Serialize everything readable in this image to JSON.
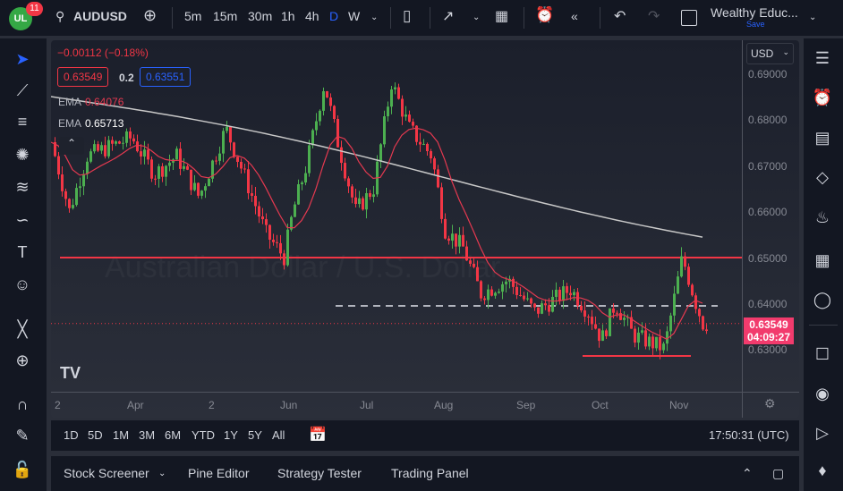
{
  "header": {
    "notification_count": "11",
    "symbol": "AUDUSD",
    "intervals": [
      "5m",
      "15m",
      "30m",
      "1h",
      "4h",
      "D",
      "W"
    ],
    "active_interval": "D",
    "layout_name": "Wealthy Educ...",
    "save_label": "Save"
  },
  "legend": {
    "change": "−0.00112 (−0.18%)",
    "bid": "0.63549",
    "spread": "0.2",
    "ask": "0.63551",
    "ema1_label": "EMA",
    "ema1_value": "0.64076",
    "ema2_label": "EMA",
    "ema2_value": "0.65713"
  },
  "watermark": "Australian Dollar / U.S. Dollar",
  "price_axis": {
    "currency": "USD",
    "ticks": [
      "0.69000",
      "0.68000",
      "0.67000",
      "0.66000",
      "0.65000",
      "0.64000",
      "0.63000"
    ],
    "last_price": "0.63549",
    "countdown": "04:09:27"
  },
  "time_axis": [
    "2",
    "Apr",
    "2",
    "Jun",
    "Jul",
    "Aug",
    "Sep",
    "Oct",
    "Nov"
  ],
  "range_bar": {
    "ranges": [
      "1D",
      "5D",
      "1M",
      "3M",
      "6M",
      "YTD",
      "1Y",
      "5Y",
      "All"
    ],
    "clock": "17:50:31 (UTC)"
  },
  "bottom_panel": {
    "tabs": [
      "Stock Screener",
      "Pine Editor",
      "Strategy Tester",
      "Trading Panel"
    ]
  },
  "colors": {
    "up": "#4caf50",
    "down": "#f23645",
    "accent": "#2962ff",
    "ema_fast": "#e53950",
    "ema_slow": "#c8c8c8"
  }
}
